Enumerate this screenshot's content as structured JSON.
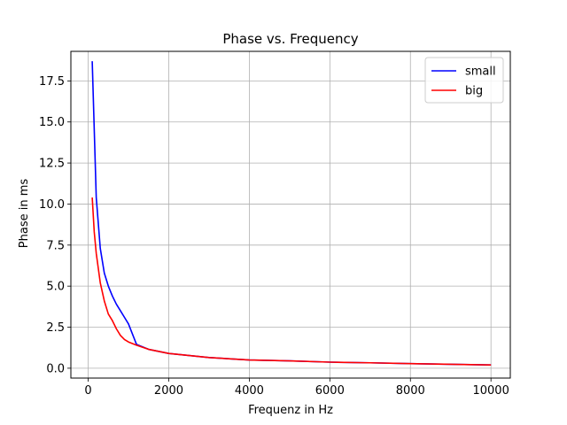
{
  "chart_data": {
    "type": "line",
    "title": "Phase vs. Frequency",
    "xlabel": "Frequenz in Hz",
    "ylabel": "Phase in ms",
    "xlim": [
      -430,
      10480
    ],
    "ylim": [
      -0.6,
      19.3
    ],
    "xticks": [
      0,
      2000,
      4000,
      6000,
      8000,
      10000
    ],
    "yticks": [
      0.0,
      2.5,
      5.0,
      7.5,
      10.0,
      12.5,
      15.0,
      17.5
    ],
    "xtick_labels": [
      "0",
      "2000",
      "4000",
      "6000",
      "8000",
      "10000"
    ],
    "ytick_labels": [
      "0.0",
      "2.5",
      "5.0",
      "7.5",
      "10.0",
      "12.5",
      "15.0",
      "17.5"
    ],
    "grid": true,
    "legend_position": "top-right",
    "series": [
      {
        "name": "small",
        "color": "#0000ff",
        "x": [
          100,
          200,
          300,
          400,
          500,
          600,
          700,
          800,
          900,
          1000,
          1200,
          1500,
          2000,
          3000,
          4000,
          5000,
          6000,
          7000,
          8000,
          9000,
          10000
        ],
        "y": [
          18.7,
          10.4,
          7.3,
          5.8,
          5.0,
          4.4,
          3.9,
          3.5,
          3.1,
          2.7,
          1.45,
          1.15,
          0.9,
          0.65,
          0.5,
          0.45,
          0.37,
          0.33,
          0.28,
          0.24,
          0.2
        ]
      },
      {
        "name": "big",
        "color": "#ff0000",
        "x": [
          100,
          150,
          200,
          300,
          400,
          500,
          600,
          700,
          800,
          900,
          1000,
          1200,
          1500,
          2000,
          3000,
          4000,
          5000,
          6000,
          7000,
          8000,
          9000,
          10000
        ],
        "y": [
          10.4,
          8.3,
          7.0,
          5.2,
          4.1,
          3.3,
          2.9,
          2.4,
          2.0,
          1.75,
          1.6,
          1.4,
          1.15,
          0.9,
          0.65,
          0.5,
          0.45,
          0.37,
          0.33,
          0.28,
          0.24,
          0.2
        ]
      }
    ]
  }
}
